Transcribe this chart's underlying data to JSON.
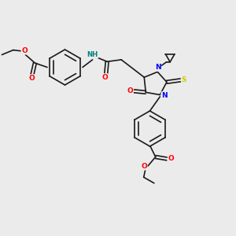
{
  "background_color": "#ebebeb",
  "atom_colors": {
    "C": "#1a1a1a",
    "N": "#0000ff",
    "O": "#ff0000",
    "S": "#cccc00",
    "H": "#008080"
  },
  "bond_color": "#1a1a1a",
  "bond_width": 1.2,
  "figsize": [
    3.0,
    3.0
  ],
  "dpi": 100,
  "xlim": [
    0,
    10
  ],
  "ylim": [
    0,
    10
  ]
}
